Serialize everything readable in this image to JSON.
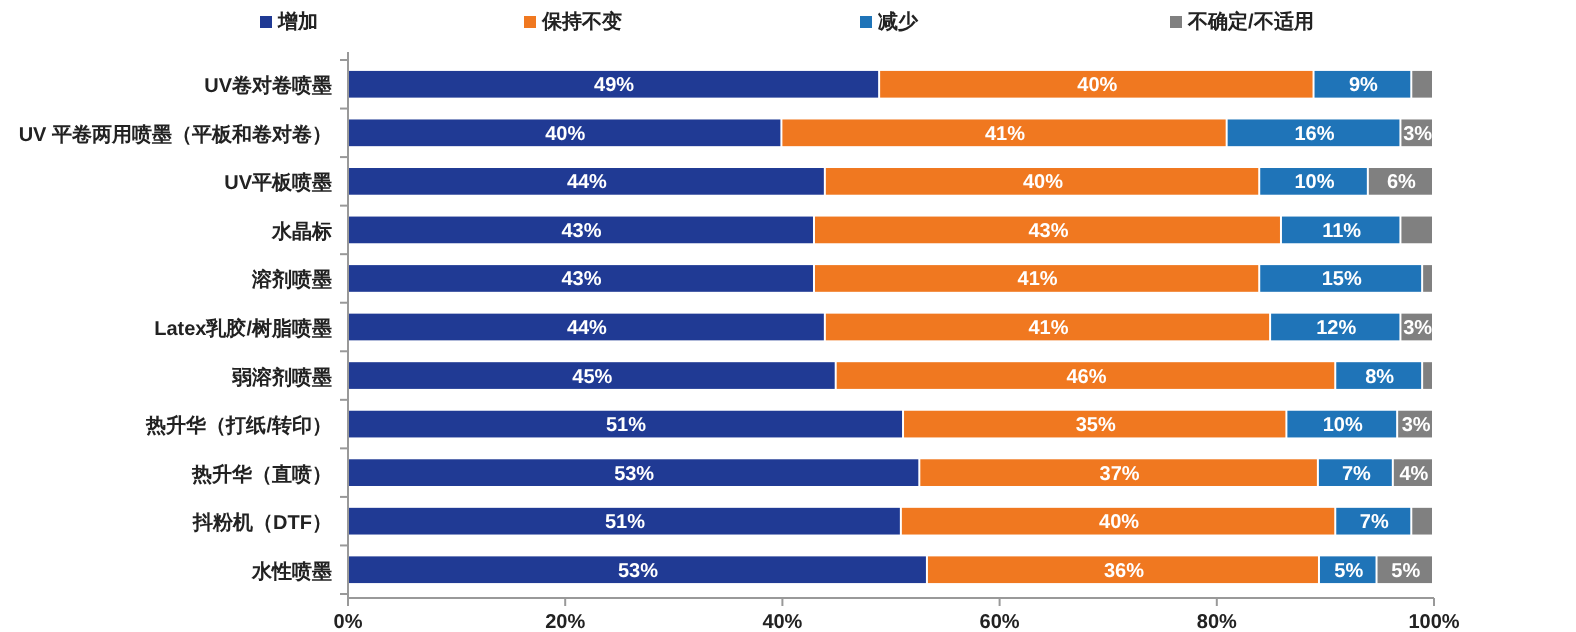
{
  "chart_data": {
    "type": "bar",
    "orientation": "horizontal",
    "stacked": true,
    "legend": "top",
    "categories": [
      "UV卷对卷喷墨",
      "UV 平卷两用喷墨（平板和卷对卷）",
      "UV平板喷墨",
      "水晶标",
      "溶剂喷墨",
      "Latex乳胶/树脂喷墨",
      "弱溶剂喷墨",
      "热升华（打纸/转印）",
      "热升华（直喷）",
      "抖粉机（DTF）",
      "水性喷墨"
    ],
    "xlim": [
      0,
      100
    ],
    "xticks": [
      {
        "value": 0,
        "label": "0%"
      },
      {
        "value": 20,
        "label": "20%"
      },
      {
        "value": 40,
        "label": "40%"
      },
      {
        "value": 60,
        "label": "60%"
      },
      {
        "value": 80,
        "label": "80%"
      },
      {
        "value": 100,
        "label": "100%"
      }
    ],
    "series": [
      {
        "name": "增加",
        "color": "#203a94",
        "values": [
          49,
          40,
          44,
          43,
          43,
          44,
          45,
          51.2,
          52.7,
          51,
          53.4
        ],
        "value_labels": [
          "49%",
          "40%",
          "44%",
          "43%",
          "43%",
          "44%",
          "45%",
          "51%",
          "53%",
          "51%",
          "53%"
        ]
      },
      {
        "name": "保持不变",
        "color": "#f07820",
        "values": [
          40,
          41,
          40,
          43,
          41,
          41,
          46,
          35.3,
          36.7,
          40,
          36.1
        ],
        "value_labels": [
          "40%",
          "41%",
          "40%",
          "43%",
          "41%",
          "41%",
          "46%",
          "35%",
          "37%",
          "40%",
          "36%"
        ]
      },
      {
        "name": "减少",
        "color": "#1f74b8",
        "values": [
          9,
          16,
          10,
          11,
          15,
          12,
          8,
          10.2,
          6.9,
          7,
          5.3
        ],
        "value_labels": [
          "9%",
          "16%",
          "10%",
          "11%",
          "15%",
          "12%",
          "8%",
          "10%",
          "7%",
          "7%",
          "5%"
        ]
      },
      {
        "name": "不确定/不适用",
        "color": "#808080",
        "values": [
          2,
          3,
          6,
          3,
          1,
          3,
          1,
          3.3,
          3.7,
          2,
          5.2
        ],
        "value_labels": [
          null,
          "3%",
          "6%",
          null,
          null,
          "3%",
          null,
          "3%",
          "4%",
          null,
          "5%"
        ]
      }
    ]
  }
}
